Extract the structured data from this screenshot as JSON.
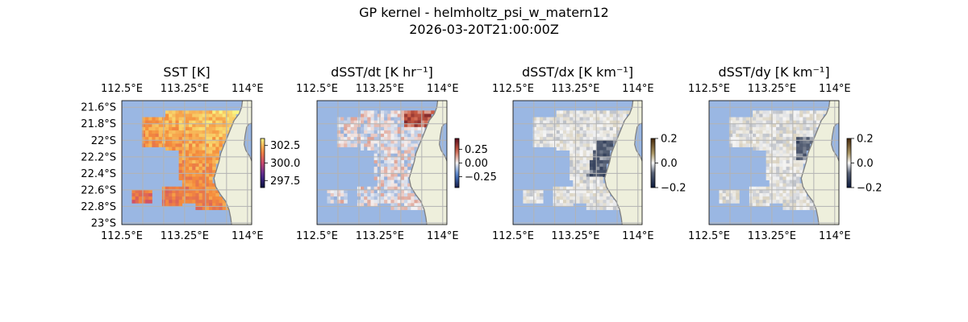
{
  "figure": {
    "title": "GP kernel - helmholtz_psi_w_matern12",
    "timestamp": "2026-03-20T21:00:00Z"
  },
  "colors": {
    "ocean": "#9ab7e3",
    "land": "#eeefdc",
    "coast": "#7f7f7f",
    "grid": "#b3b3b3"
  },
  "chart_data": [
    {
      "type": "heatmap",
      "panel": "sst",
      "title": "SST [K]",
      "x_ticks": [
        "112.5°E",
        "113.25°E",
        "114°E"
      ],
      "y_ticks": [
        "21.6°S",
        "21.8°S",
        "22°S",
        "22.2°S",
        "22.4°S",
        "22.6°S",
        "22.8°S",
        "23°S"
      ],
      "xlim": [
        112.5,
        114.05
      ],
      "ylim": [
        -23.02,
        -21.52
      ],
      "colorbar": {
        "ticks": [
          "302.5",
          "300.0",
          "297.5"
        ],
        "tick_values": [
          302.5,
          300.0,
          297.5
        ],
        "range": [
          296.5,
          303.5
        ],
        "colormap": "thermal"
      },
      "field": "sst",
      "grid": true
    },
    {
      "type": "heatmap",
      "panel": "dsst_dt",
      "title": "dSST/dt [K hr⁻¹]",
      "x_ticks": [
        "112.5°E",
        "113.25°E",
        "114°E"
      ],
      "y_ticks": [],
      "xlim": [
        112.5,
        114.05
      ],
      "ylim": [
        -23.02,
        -21.52
      ],
      "colorbar": {
        "ticks": [
          "0.25",
          "0.00",
          "−0.25"
        ],
        "tick_values": [
          0.25,
          0.0,
          -0.25
        ],
        "range": [
          -0.45,
          0.45
        ],
        "colormap": "balance"
      },
      "field": "dsst_dt",
      "grid": true
    },
    {
      "type": "heatmap",
      "panel": "dsst_dx",
      "title": "dSST/dx [K km⁻¹]",
      "x_ticks": [
        "112.5°E",
        "113.25°E",
        "114°E"
      ],
      "y_ticks": [],
      "xlim": [
        112.5,
        114.05
      ],
      "ylim": [
        -23.02,
        -21.52
      ],
      "colorbar": {
        "ticks": [
          "0.2",
          "0.0",
          "−0.2"
        ],
        "tick_values": [
          0.2,
          0.0,
          -0.2
        ],
        "range": [
          -0.2,
          0.2
        ],
        "colormap": "diff"
      },
      "field": "dsst_dx",
      "grid": true
    },
    {
      "type": "heatmap",
      "panel": "dsst_dy",
      "title": "dSST/dy [K km⁻¹]",
      "x_ticks": [
        "112.5°E",
        "113.25°E",
        "114°E"
      ],
      "y_ticks": [],
      "xlim": [
        112.5,
        114.05
      ],
      "ylim": [
        -23.02,
        -21.52
      ],
      "colorbar": {
        "ticks": [
          "0.2",
          "0.0",
          "−0.2"
        ],
        "tick_values": [
          0.2,
          0.0,
          -0.2
        ],
        "range": [
          -0.2,
          0.2
        ],
        "colormap": "diff"
      },
      "field": "dsst_dy",
      "grid": true
    }
  ]
}
